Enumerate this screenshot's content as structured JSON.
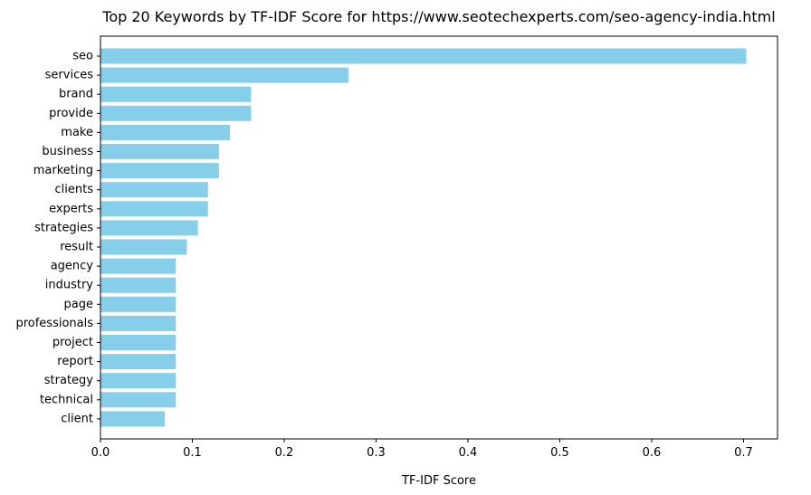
{
  "chart_data": {
    "type": "bar",
    "orientation": "horizontal",
    "title": "Top 20 Keywords by TF-IDF Score for https://www.seotechexperts.com/seo-agency-india.html",
    "xlabel": "TF-IDF Score",
    "ylabel": "",
    "xlim": [
      0,
      0.737
    ],
    "xticks": [
      0.0,
      0.1,
      0.2,
      0.3,
      0.4,
      0.5,
      0.6,
      0.7
    ],
    "xtick_labels": [
      "0.0",
      "0.1",
      "0.2",
      "0.3",
      "0.4",
      "0.5",
      "0.6",
      "0.7"
    ],
    "grid": false,
    "bar_color": "#87ceeb",
    "categories": [
      "seo",
      "services",
      "brand",
      "provide",
      "make",
      "business",
      "marketing",
      "clients",
      "experts",
      "strategies",
      "result",
      "agency",
      "industry",
      "page",
      "professionals",
      "project",
      "report",
      "strategy",
      "technical",
      "client"
    ],
    "values": [
      0.703,
      0.27,
      0.164,
      0.164,
      0.141,
      0.129,
      0.129,
      0.117,
      0.117,
      0.106,
      0.094,
      0.082,
      0.082,
      0.082,
      0.082,
      0.082,
      0.082,
      0.082,
      0.082,
      0.07
    ]
  }
}
